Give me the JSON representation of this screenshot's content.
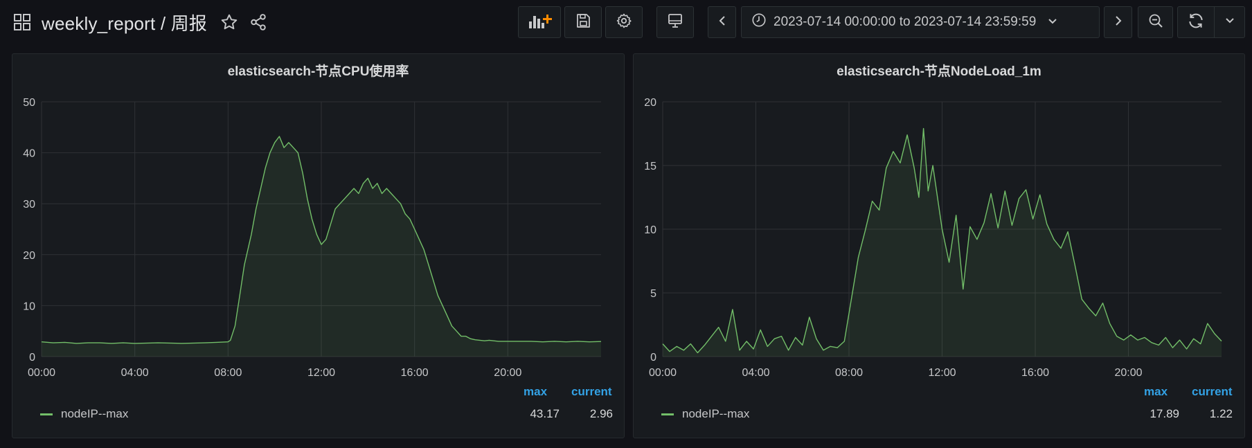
{
  "header": {
    "breadcrumb": "weekly_report / 周报",
    "time_range": "2023-07-14 00:00:00 to 2023-07-14 23:59:59"
  },
  "icons": {
    "dashboards": "grid-icon",
    "star": "star-icon",
    "share": "share-icon",
    "add_panel": "add-panel-icon",
    "save": "save-icon",
    "settings": "gear-icon",
    "tv": "monitor-icon",
    "prev": "chevron-left-icon",
    "clock": "clock-icon",
    "next": "chevron-right-icon",
    "zoom_out": "zoom-out-icon",
    "refresh": "refresh-icon",
    "dropdown": "chevron-down-icon"
  },
  "colors": {
    "series": "#73bf69",
    "legend_header": "#33a2e5",
    "add_panel_accent": "#ff8c00"
  },
  "panels": [
    {
      "title": "elasticsearch-节点CPU使用率",
      "legend": {
        "header_max": "max",
        "header_current": "current",
        "series_name": "nodeIP--max",
        "max": "43.17",
        "current": "2.96"
      }
    },
    {
      "title": "elasticsearch-节点NodeLoad_1m",
      "legend": {
        "header_max": "max",
        "header_current": "current",
        "series_name": "nodeIP--max",
        "max": "17.89",
        "current": "1.22"
      }
    }
  ],
  "chart_data": [
    {
      "type": "area",
      "title": "elasticsearch-节点CPU使用率",
      "xlabel": "",
      "ylabel": "",
      "x_ticks": [
        "00:00",
        "04:00",
        "08:00",
        "12:00",
        "16:00",
        "20:00"
      ],
      "y_ticks": [
        "0",
        "10",
        "20",
        "30",
        "40",
        "50"
      ],
      "xlim": [
        0,
        24
      ],
      "ylim": [
        0,
        50
      ],
      "grid": true,
      "series": [
        {
          "name": "nodeIP--max",
          "color": "#73bf69",
          "x": [
            0,
            0.5,
            1,
            1.5,
            2,
            2.5,
            3,
            3.5,
            4,
            5,
            6,
            7,
            7.5,
            8,
            8.1,
            8.3,
            8.5,
            8.7,
            9,
            9.2,
            9.4,
            9.6,
            9.8,
            10,
            10.2,
            10.4,
            10.6,
            10.8,
            11,
            11.2,
            11.4,
            11.6,
            11.8,
            12,
            12.2,
            12.4,
            12.6,
            12.8,
            13,
            13.2,
            13.4,
            13.6,
            13.8,
            14,
            14.2,
            14.4,
            14.6,
            14.8,
            15,
            15.2,
            15.4,
            15.6,
            15.8,
            16,
            16.2,
            16.4,
            16.6,
            16.8,
            17,
            17.2,
            17.4,
            17.6,
            17.8,
            18,
            18.2,
            18.4,
            18.6,
            18.8,
            19,
            19.2,
            19.4,
            19.6,
            19.8,
            20,
            20.5,
            21,
            21.5,
            22,
            22.5,
            23,
            23.5,
            24
          ],
          "y": [
            2.9,
            2.7,
            2.8,
            2.6,
            2.7,
            2.7,
            2.6,
            2.7,
            2.6,
            2.7,
            2.6,
            2.7,
            2.8,
            2.9,
            3.2,
            6,
            12,
            18,
            24,
            29,
            33,
            37,
            40,
            42,
            43.2,
            41,
            42,
            41,
            40,
            36,
            31,
            27,
            24,
            22,
            23,
            26,
            29,
            30,
            31,
            32,
            33,
            32,
            34,
            35,
            33,
            34,
            32,
            33,
            32,
            31,
            30,
            28,
            27,
            25,
            23,
            21,
            18,
            15,
            12,
            10,
            8,
            6,
            5,
            4,
            4,
            3.5,
            3.3,
            3.2,
            3.1,
            3.2,
            3.1,
            3.0,
            3.0,
            3.0,
            3.0,
            3.0,
            2.9,
            3.0,
            2.9,
            3.0,
            2.9,
            2.96
          ]
        }
      ]
    },
    {
      "type": "area",
      "title": "elasticsearch-节点NodeLoad_1m",
      "xlabel": "",
      "ylabel": "",
      "x_ticks": [
        "00:00",
        "04:00",
        "08:00",
        "12:00",
        "16:00",
        "20:00"
      ],
      "y_ticks": [
        "0",
        "5",
        "10",
        "15",
        "20"
      ],
      "xlim": [
        0,
        24
      ],
      "ylim": [
        0,
        20
      ],
      "grid": true,
      "series": [
        {
          "name": "nodeIP--max",
          "color": "#73bf69",
          "x": [
            0,
            0.3,
            0.6,
            0.9,
            1.2,
            1.5,
            1.8,
            2.1,
            2.4,
            2.7,
            3.0,
            3.3,
            3.6,
            3.9,
            4.2,
            4.5,
            4.8,
            5.1,
            5.4,
            5.7,
            6.0,
            6.3,
            6.6,
            6.9,
            7.2,
            7.5,
            7.8,
            8.1,
            8.4,
            8.7,
            9.0,
            9.3,
            9.6,
            9.9,
            10.2,
            10.5,
            10.8,
            11.0,
            11.2,
            11.4,
            11.6,
            11.8,
            12.0,
            12.3,
            12.6,
            12.9,
            13.2,
            13.5,
            13.8,
            14.1,
            14.4,
            14.7,
            15.0,
            15.3,
            15.6,
            15.9,
            16.2,
            16.5,
            16.8,
            17.1,
            17.4,
            17.7,
            18.0,
            18.3,
            18.6,
            18.9,
            19.2,
            19.5,
            19.8,
            20.1,
            20.4,
            20.7,
            21.0,
            21.3,
            21.6,
            21.9,
            22.2,
            22.5,
            22.8,
            23.1,
            23.4,
            23.7,
            24
          ],
          "y": [
            1.0,
            0.4,
            0.8,
            0.5,
            1.0,
            0.3,
            0.9,
            1.6,
            2.3,
            1.2,
            3.7,
            0.5,
            1.2,
            0.6,
            2.1,
            0.8,
            1.4,
            1.6,
            0.5,
            1.5,
            0.9,
            3.1,
            1.4,
            0.5,
            0.8,
            0.7,
            1.2,
            4.5,
            7.8,
            9.9,
            12.2,
            11.5,
            14.8,
            16.1,
            15.2,
            17.4,
            14.8,
            12.5,
            17.9,
            13.0,
            15.0,
            12.5,
            10.0,
            7.4,
            11.1,
            5.3,
            10.2,
            9.2,
            10.5,
            12.8,
            10.1,
            13.0,
            10.3,
            12.4,
            13.1,
            10.8,
            12.7,
            10.4,
            9.2,
            8.5,
            9.8,
            7.2,
            4.5,
            3.8,
            3.2,
            4.2,
            2.6,
            1.6,
            1.3,
            1.7,
            1.3,
            1.5,
            1.1,
            0.9,
            1.5,
            0.7,
            1.3,
            0.6,
            1.4,
            1.0,
            2.6,
            1.8,
            1.22
          ]
        }
      ]
    }
  ]
}
